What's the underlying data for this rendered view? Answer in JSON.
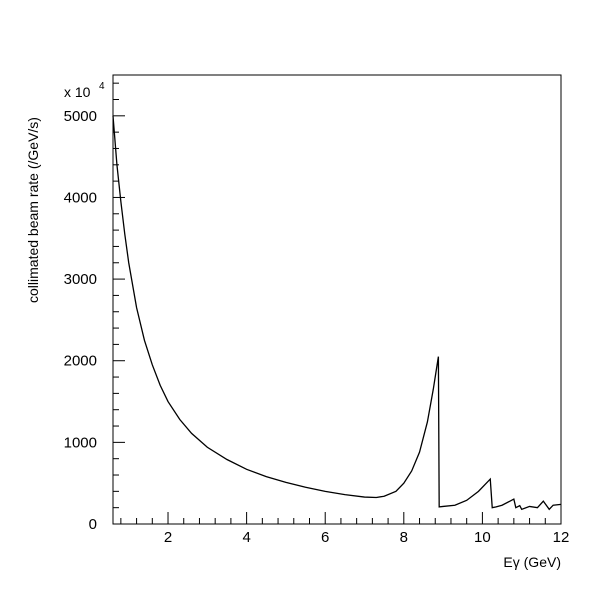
{
  "chart_data": {
    "type": "line",
    "title": "",
    "xlabel": "Eγ (GeV)",
    "ylabel": "collimated beam rate (/GeV/s)",
    "y_multiplier_base": "x 10",
    "y_multiplier_exp": "4",
    "xlim": [
      0.6,
      12
    ],
    "ylim": [
      0,
      5500
    ],
    "x_ticks": [
      2,
      4,
      6,
      8,
      10,
      12
    ],
    "x_tick_labels": [
      "2",
      "4",
      "6",
      "8",
      "10",
      "12"
    ],
    "y_ticks": [
      0,
      1000,
      2000,
      3000,
      4000,
      5000
    ],
    "y_tick_labels": [
      "0",
      "1000",
      "2000",
      "3000",
      "4000",
      "5000"
    ],
    "grid": false,
    "series": [
      {
        "x": [
          0.6,
          0.7,
          0.8,
          0.9,
          1.0,
          1.2,
          1.4,
          1.6,
          1.8,
          2.0,
          2.3,
          2.6,
          3.0,
          3.5,
          4.0,
          4.5,
          5.0,
          5.5,
          6.0,
          6.5,
          7.0,
          7.3,
          7.5,
          7.8,
          8.0,
          8.2,
          8.4,
          8.6,
          8.75,
          8.88,
          8.9,
          9.0,
          9.3,
          9.6,
          9.9,
          10.1,
          10.2,
          10.25,
          10.35,
          10.5,
          10.7,
          10.8,
          10.85,
          10.95,
          11.0,
          11.2,
          11.4,
          11.55,
          11.7,
          11.8,
          12.0
        ],
        "y": [
          5000,
          4400,
          3950,
          3550,
          3200,
          2650,
          2250,
          1950,
          1700,
          1500,
          1280,
          1110,
          940,
          790,
          670,
          580,
          510,
          450,
          400,
          360,
          330,
          325,
          340,
          400,
          500,
          650,
          880,
          1250,
          1650,
          2050,
          210,
          215,
          230,
          290,
          400,
          500,
          550,
          200,
          210,
          230,
          280,
          305,
          200,
          225,
          180,
          215,
          200,
          280,
          180,
          230,
          240
        ]
      }
    ]
  }
}
